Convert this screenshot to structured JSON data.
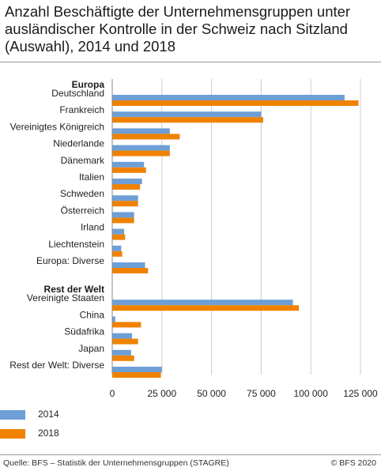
{
  "title": "Anzahl Beschäftigte der Unternehmensgruppen unter ausländischer Kontrolle in der Schweiz nach Sitzland (Auswahl), 2014 und 2018",
  "source": "Quelle: BFS – Statistik der Unternehmensgruppen (STAGRE)",
  "copyright": "© BFS 2020",
  "colors": {
    "series_2014": "#6d9fd6",
    "series_2018": "#f08200",
    "grid": "#cccccc",
    "axis": "#888888"
  },
  "chart_data": {
    "type": "bar",
    "orientation": "horizontal",
    "title": "Anzahl Beschäftigte der Unternehmensgruppen unter ausländischer Kontrolle in der Schweiz nach Sitzland (Auswahl), 2014 und 2018",
    "xlim": [
      0,
      125000
    ],
    "xticks": [
      0,
      25000,
      50000,
      75000,
      100000,
      125000
    ],
    "xtick_labels": [
      "0",
      "25 000",
      "50 000",
      "75 000",
      "100 000",
      "125 000"
    ],
    "grid": true,
    "legend_position": "bottom-left",
    "groups": [
      {
        "label": "Europa",
        "categories": [
          "Deutschland",
          "Frankreich",
          "Vereinigtes Königreich",
          "Niederlande",
          "Dänemark",
          "Italien",
          "Schweden",
          "Österreich",
          "Irland",
          "Liechtenstein",
          "Europa: Diverse"
        ]
      },
      {
        "label": "Rest der Welt",
        "categories": [
          "Vereinigte Staaten",
          "China",
          "Südafrika",
          "Japan",
          "Rest der Welt: Diverse"
        ]
      }
    ],
    "categories": [
      "Deutschland",
      "Frankreich",
      "Vereinigtes Königreich",
      "Niederlande",
      "Dänemark",
      "Italien",
      "Schweden",
      "Österreich",
      "Irland",
      "Liechtenstein",
      "Europa: Diverse",
      "Vereinigte Staaten",
      "China",
      "Südafrika",
      "Japan",
      "Rest der Welt: Diverse"
    ],
    "series": [
      {
        "name": "2014",
        "values": [
          117000,
          75000,
          29000,
          29000,
          16000,
          15000,
          13000,
          11000,
          6000,
          4500,
          16500,
          91000,
          1500,
          10000,
          9500,
          25000
        ]
      },
      {
        "name": "2018",
        "values": [
          124000,
          76000,
          34000,
          29000,
          17000,
          14000,
          13000,
          11000,
          6500,
          5000,
          18000,
          94000,
          14500,
          13000,
          11000,
          24500
        ]
      }
    ]
  }
}
